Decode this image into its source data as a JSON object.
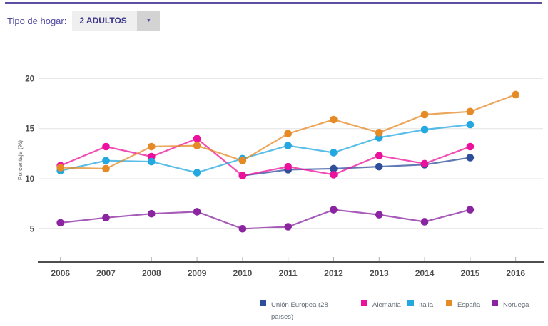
{
  "header": {
    "filter_label": "Tipo de hogar:",
    "dropdown_value": "2 ADULTOS",
    "dropdown_arrow": "▼",
    "accent_color": "#5c4ea2"
  },
  "chart_data": {
    "type": "line",
    "title": "",
    "xlabel": "",
    "ylabel": "Porcentaje (%)",
    "x": [
      2006,
      2007,
      2008,
      2009,
      2010,
      2011,
      2012,
      2013,
      2014,
      2015,
      2016
    ],
    "yticks": [
      5,
      10,
      15,
      20
    ],
    "ylim": [
      1.7,
      21.1
    ],
    "grid": true,
    "legend_position": "bottom",
    "series": [
      {
        "name": "Unión Europea (28 países)",
        "color": "#2e4d9b",
        "values": [
          null,
          null,
          null,
          null,
          10.3,
          10.9,
          11.0,
          11.2,
          11.4,
          12.1,
          null
        ]
      },
      {
        "name": "Alemania",
        "color": "#ec119c",
        "values": [
          11.3,
          13.2,
          12.2,
          14.0,
          10.3,
          11.2,
          10.4,
          12.3,
          11.5,
          13.2,
          null
        ]
      },
      {
        "name": "Italia",
        "color": "#23a8e0",
        "values": [
          10.8,
          11.8,
          11.7,
          10.6,
          12.0,
          13.3,
          12.6,
          14.1,
          14.9,
          15.4,
          null
        ]
      },
      {
        "name": "España",
        "color": "#e68a26",
        "values": [
          11.1,
          11.0,
          13.2,
          13.3,
          11.8,
          14.5,
          15.9,
          14.6,
          16.4,
          16.7,
          18.4
        ]
      },
      {
        "name": "Noruega",
        "color": "#8a24a0",
        "values": [
          5.6,
          6.1,
          6.5,
          6.7,
          5.0,
          5.2,
          6.9,
          6.4,
          5.7,
          6.9,
          null
        ]
      }
    ]
  }
}
